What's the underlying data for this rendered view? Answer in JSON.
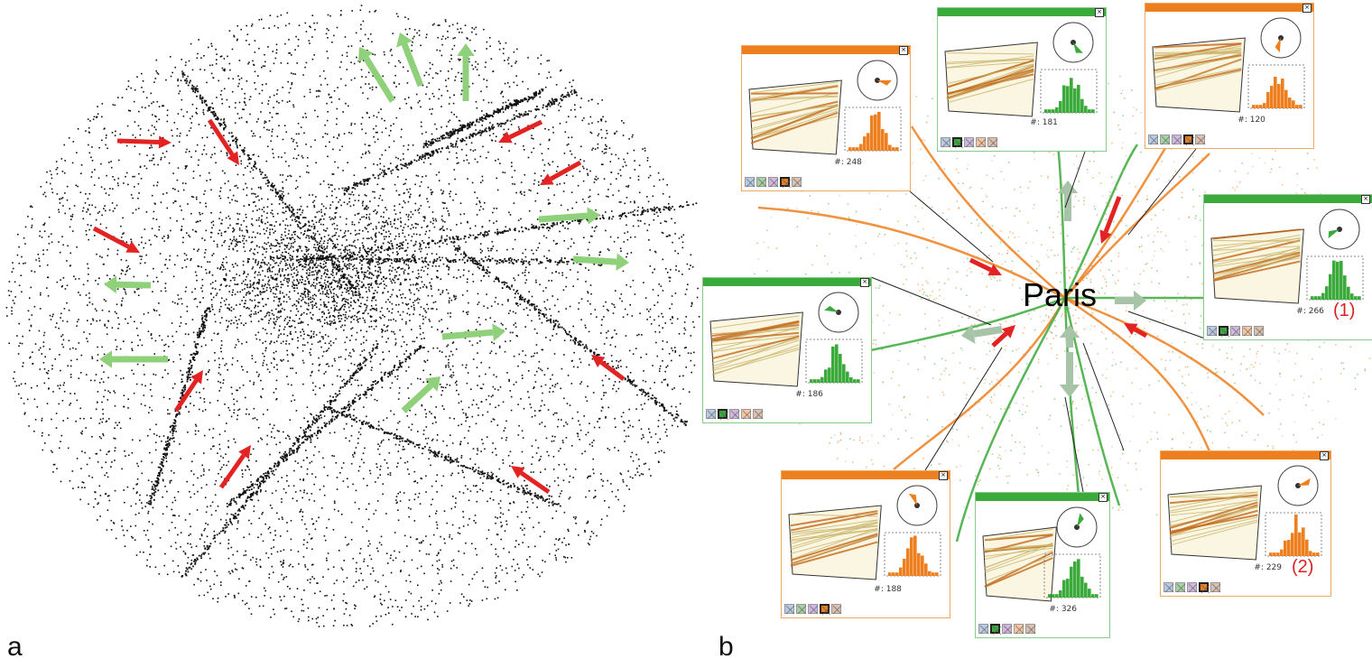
{
  "panels": {
    "a": "a",
    "b": "b"
  },
  "city_label": "Paris",
  "colors": {
    "orange": "#ee7f1e",
    "green": "#3aaa3a",
    "red_arrow": "#e32222",
    "green_arrow": "#8fd07a"
  },
  "windows": [
    {
      "id": "w1",
      "color": "orange",
      "count": "#: 248",
      "active_swatch": 3
    },
    {
      "id": "w2",
      "color": "green",
      "count": "#: 181",
      "active_swatch": 1
    },
    {
      "id": "w3",
      "color": "orange",
      "count": "#: 120",
      "active_swatch": 3
    },
    {
      "id": "w4",
      "color": "green",
      "count": "#: 266",
      "active_swatch": 1,
      "flag": "(1)"
    },
    {
      "id": "w5",
      "color": "green",
      "count": "#: 186",
      "active_swatch": 1
    },
    {
      "id": "w6",
      "color": "orange",
      "count": "#: 188",
      "active_swatch": 3
    },
    {
      "id": "w7",
      "color": "green",
      "count": "#: 326",
      "active_swatch": 1
    },
    {
      "id": "w8",
      "color": "orange",
      "count": "#: 229",
      "active_swatch": 3,
      "flag": "(2)"
    }
  ]
}
